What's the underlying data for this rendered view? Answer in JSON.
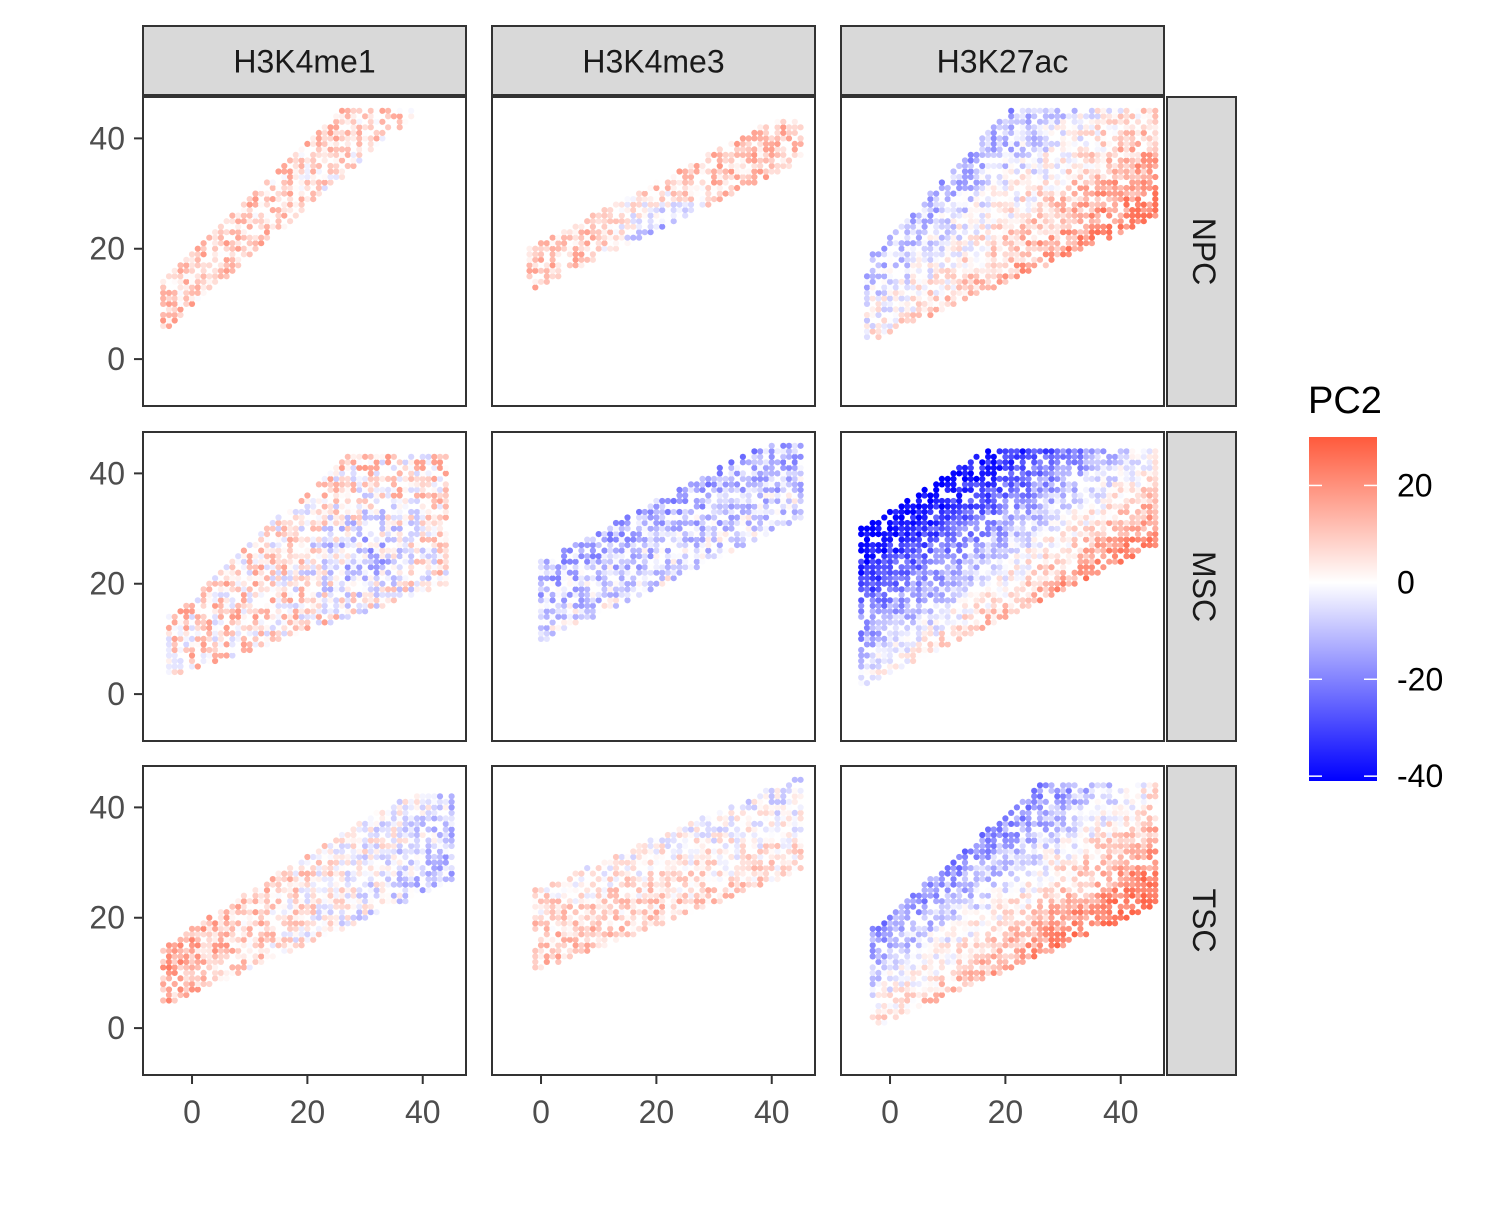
{
  "chart_data": {
    "type": "scatter",
    "title": "",
    "xlabel": "",
    "ylabel": "",
    "facet_columns": [
      "H3K4me1",
      "H3K4me3",
      "H3K27ac"
    ],
    "facet_rows": [
      "NPC",
      "MSC",
      "TSC"
    ],
    "x_ticks": [
      0,
      20,
      40
    ],
    "y_ticks": [
      0,
      20,
      40
    ],
    "xlim": [
      -8.5,
      47.5
    ],
    "ylim": [
      -8.5,
      47.5
    ],
    "grid": false,
    "legend": {
      "title": "PC2",
      "position": "right",
      "ticks": [
        20,
        0,
        -20,
        -40
      ],
      "range": [
        -41,
        30
      ],
      "colors": {
        "low": "#0000FF",
        "mid": "#FFFFFF",
        "high": "#FF5A3C"
      }
    },
    "panels": [
      {
        "column": "H3K4me1",
        "row": "NPC",
        "x_range": [
          -5,
          45
        ],
        "y_range": [
          6,
          45
        ],
        "lower_bound": {
          "intercept": 6,
          "slope": 0.9
        },
        "upper_bound": {
          "intercept": 14,
          "slope": 1.0
        },
        "pc2_pattern": "salmon-dominant with scattered violet in the upper-right",
        "pc2_range": [
          -28,
          24
        ]
      },
      {
        "column": "H3K4me3",
        "row": "NPC",
        "x_range": [
          -2,
          45
        ],
        "y_range": [
          13,
          43
        ],
        "lower_bound": {
          "intercept": 13,
          "slope": 0.5
        },
        "upper_bound": {
          "intercept": 20,
          "slope": 0.55
        },
        "pc2_pattern": "salmon left and top-right, violet cluster near x 20-28, y 18-26",
        "pc2_range": [
          -25,
          22
        ]
      },
      {
        "column": "H3K27ac",
        "row": "NPC",
        "x_range": [
          -4,
          46
        ],
        "y_range": [
          4,
          45
        ],
        "lower_bound": {
          "intercept": 4,
          "slope": 0.45
        },
        "upper_bound": {
          "intercept": 18,
          "slope": 1.1
        },
        "pc2_pattern": "violet upper-left, salmon lower-right and lower-left",
        "pc2_range": [
          -28,
          26
        ]
      },
      {
        "column": "H3K4me1",
        "row": "MSC",
        "x_range": [
          -4,
          44
        ],
        "y_range": [
          4,
          43
        ],
        "lower_bound": {
          "intercept": 4,
          "slope": 0.35
        },
        "upper_bound": {
          "intercept": 14,
          "slope": 0.95
        },
        "pc2_pattern": "mixed salmon and violet, violet core near x 25-35, y 20-30",
        "pc2_range": [
          -26,
          22
        ]
      },
      {
        "column": "H3K4me3",
        "row": "MSC",
        "x_range": [
          0,
          45
        ],
        "y_range": [
          10,
          45
        ],
        "lower_bound": {
          "intercept": 10,
          "slope": 0.5
        },
        "upper_bound": {
          "intercept": 24,
          "slope": 0.55
        },
        "pc2_pattern": "violet along the diagonal ridge, salmon in lower-left block",
        "pc2_range": [
          -28,
          20
        ]
      },
      {
        "column": "H3K27ac",
        "row": "MSC",
        "x_range": [
          -5,
          46
        ],
        "y_range": [
          2,
          44
        ],
        "lower_bound": {
          "intercept": 2,
          "slope": 0.5
        },
        "upper_bound": {
          "intercept": 30,
          "slope": 0.65
        },
        "pc2_pattern": "strong violet to blue in upper-left, salmon in lower-right",
        "pc2_range": [
          -41,
          26
        ]
      },
      {
        "column": "H3K4me1",
        "row": "TSC",
        "x_range": [
          -5,
          45
        ],
        "y_range": [
          5,
          42
        ],
        "lower_bound": {
          "intercept": 5,
          "slope": 0.45
        },
        "upper_bound": {
          "intercept": 15,
          "slope": 0.65
        },
        "pc2_pattern": "salmon on the left and top, violet on the right",
        "pc2_range": [
          -26,
          24
        ]
      },
      {
        "column": "H3K4me3",
        "row": "TSC",
        "x_range": [
          -1,
          45
        ],
        "y_range": [
          11,
          45
        ],
        "lower_bound": {
          "intercept": 11,
          "slope": 0.4
        },
        "upper_bound": {
          "intercept": 25,
          "slope": 0.45
        },
        "pc2_pattern": "salmon lower-left, violet in upper-right ridge",
        "pc2_range": [
          -25,
          22
        ]
      },
      {
        "column": "H3K27ac",
        "row": "TSC",
        "x_range": [
          -3,
          46
        ],
        "y_range": [
          1,
          44
        ],
        "lower_bound": {
          "intercept": 1,
          "slope": 0.45
        },
        "upper_bound": {
          "intercept": 18,
          "slope": 0.9
        },
        "pc2_pattern": "violet upper band, salmon lower-right core",
        "pc2_range": [
          -26,
          28
        ]
      }
    ]
  }
}
